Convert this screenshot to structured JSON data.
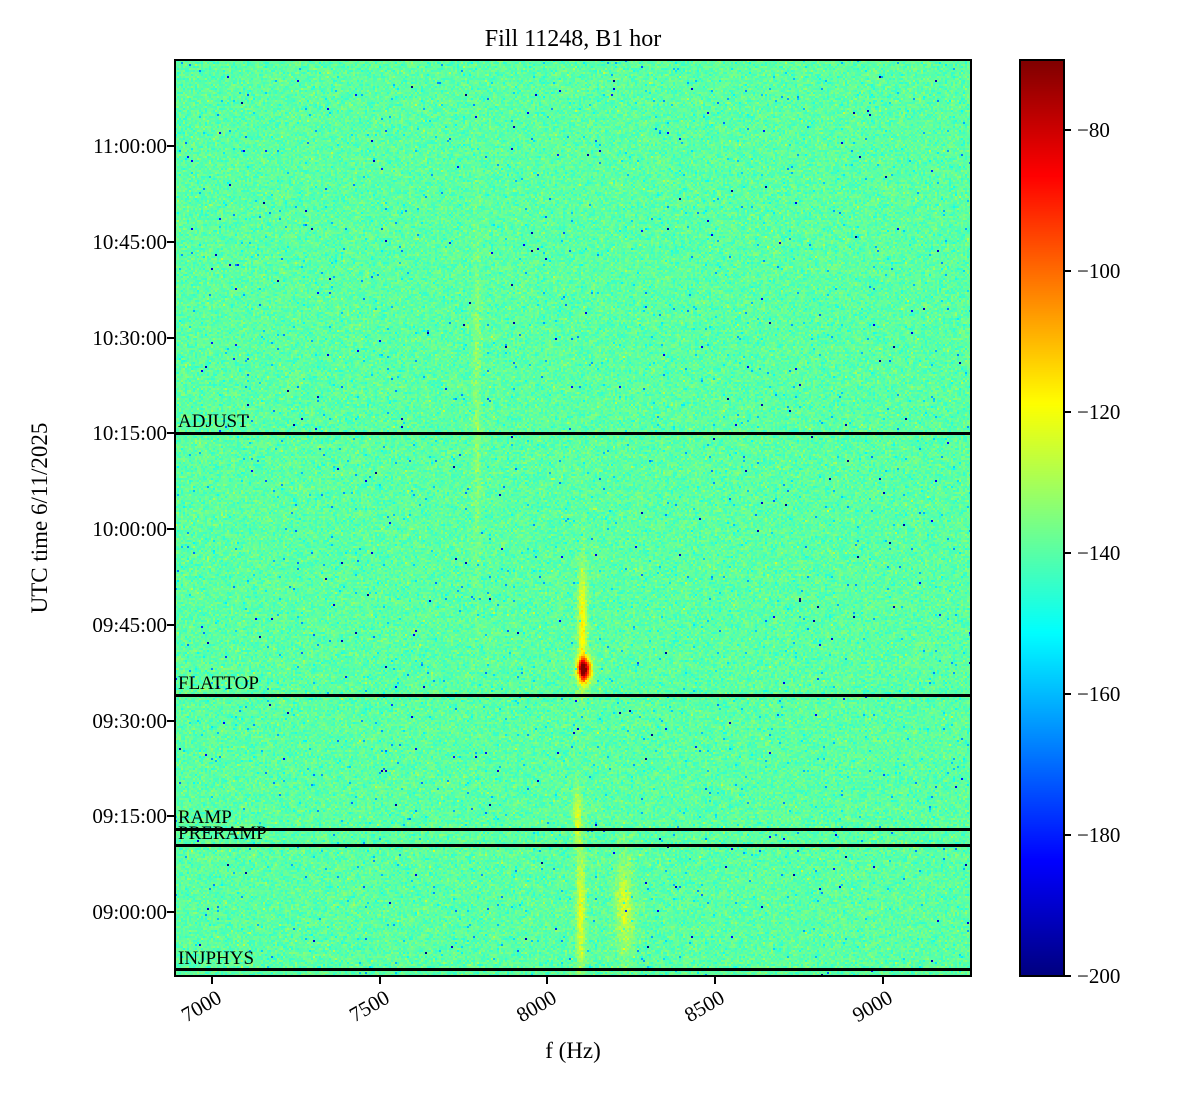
{
  "title": "Fill 11248, B1 hor",
  "chart_data": {
    "type": "heatmap",
    "title": "Fill 11248, B1 hor",
    "xlabel": "f (Hz)",
    "ylabel": "UTC time 6/11/2025",
    "colormap": "jet",
    "x_range_hz": [
      6890,
      9263
    ],
    "x_ticks": [
      7000,
      7500,
      8000,
      8500,
      9000
    ],
    "y_time_range": [
      "08:50:00",
      "11:13:30"
    ],
    "y_ticks": [
      "09:00:00",
      "09:15:00",
      "09:30:00",
      "09:45:00",
      "10:00:00",
      "10:15:00",
      "10:30:00",
      "10:45:00",
      "11:00:00"
    ],
    "colorbar": {
      "vmin": -200,
      "vmax": -70,
      "ticks": [
        -80,
        -100,
        -120,
        -140,
        -160,
        -180,
        -200
      ]
    },
    "background_level_db": -139.5,
    "noise_sigma_db": 3.0,
    "beam_modes": [
      {
        "label": "INJPHYS",
        "time": "08:51:00"
      },
      {
        "label": "PRERAMP",
        "time": "09:10:30"
      },
      {
        "label": "RAMP",
        "time": "09:13:00"
      },
      {
        "label": "FLATTOP",
        "time": "09:34:00"
      },
      {
        "label": "ADJUST",
        "time": "10:15:00"
      }
    ],
    "features": [
      {
        "desc": "bright hot spot above FLATTOP",
        "f_hz": 8110,
        "time": "09:38:00",
        "sigma_f_hz": 14,
        "sigma_t_min": 1.3,
        "amp_db": 68
      },
      {
        "desc": "vertical yellow streak 09:40-09:50",
        "f_hz": 8105,
        "time": "09:45:00",
        "sigma_f_hz": 9,
        "sigma_t_min": 6.5,
        "amp_db": 22
      },
      {
        "desc": "faint streak near RAMP",
        "f_hz": 8090,
        "time": "09:15:00",
        "sigma_f_hz": 8,
        "sigma_t_min": 3,
        "amp_db": 16
      },
      {
        "desc": "bottom streak near injection",
        "f_hz": 8100,
        "time": "09:00:00",
        "sigma_f_hz": 9,
        "sigma_t_min": 7,
        "amp_db": 18
      },
      {
        "desc": "bottom patch right of streak",
        "f_hz": 8230,
        "time": "09:01:00",
        "sigma_f_hz": 18,
        "sigma_t_min": 5,
        "amp_db": 15
      },
      {
        "desc": "very faint line near 7790 Hz",
        "f_hz": 7790,
        "time": "10:20:00",
        "sigma_f_hz": 7,
        "sigma_t_min": 18,
        "amp_db": 7
      }
    ]
  }
}
